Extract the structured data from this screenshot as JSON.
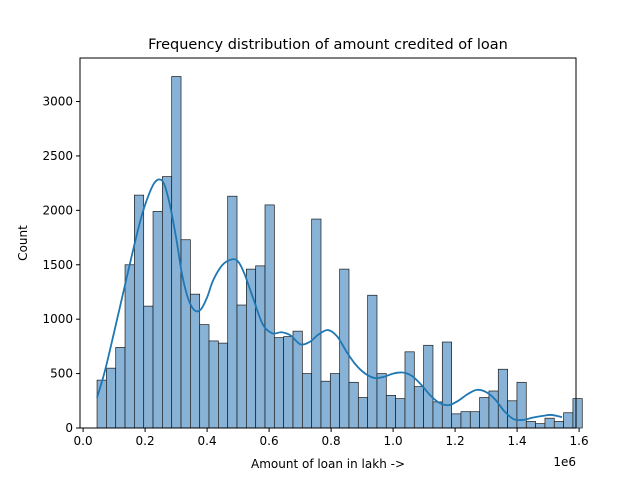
{
  "chart_data": {
    "type": "bar",
    "title": "Frequency distribution of amount credited of loan",
    "xlabel": "Amount of loan in lakh ->",
    "ylabel": "Count",
    "x_offset_label": "1e6",
    "xlim": [
      -0.01,
      1.59
    ],
    "ylim": [
      0,
      3400
    ],
    "xticks": [
      0.0,
      0.2,
      0.4,
      0.6,
      0.8,
      1.0,
      1.2,
      1.4,
      1.6
    ],
    "xtick_labels": [
      "0.0",
      "0.2",
      "0.4",
      "0.6",
      "0.8",
      "1.0",
      "1.2",
      "1.4",
      "1.6"
    ],
    "yticks": [
      0,
      500,
      1000,
      1500,
      2000,
      2500,
      3000
    ],
    "ytick_labels": [
      "0",
      "500",
      "1000",
      "1500",
      "2000",
      "2500",
      "3000"
    ],
    "bin_start": 0.045,
    "bin_width": 0.0301,
    "values": [
      440,
      550,
      740,
      1500,
      2140,
      1120,
      1990,
      2310,
      3230,
      1730,
      1230,
      950,
      800,
      780,
      2130,
      1130,
      1460,
      1490,
      2050,
      830,
      840,
      890,
      500,
      1920,
      430,
      500,
      1460,
      420,
      280,
      1220,
      500,
      300,
      270,
      700,
      380,
      760,
      240,
      790,
      130,
      150,
      150,
      280,
      340,
      540,
      250,
      420,
      60,
      40,
      90,
      60,
      140,
      270
    ],
    "kde": {
      "x": [
        0.045,
        0.07,
        0.1,
        0.13,
        0.16,
        0.19,
        0.22,
        0.24,
        0.26,
        0.28,
        0.3,
        0.32,
        0.34,
        0.36,
        0.38,
        0.4,
        0.42,
        0.45,
        0.48,
        0.5,
        0.52,
        0.55,
        0.58,
        0.61,
        0.64,
        0.67,
        0.7,
        0.73,
        0.76,
        0.79,
        0.82,
        0.85,
        0.88,
        0.91,
        0.94,
        0.97,
        1.0,
        1.03,
        1.06,
        1.09,
        1.12,
        1.15,
        1.18,
        1.21,
        1.24,
        1.27,
        1.3,
        1.33,
        1.36,
        1.39,
        1.42,
        1.45,
        1.48,
        1.51,
        1.545
      ],
      "y": [
        280,
        520,
        880,
        1250,
        1620,
        1960,
        2200,
        2280,
        2250,
        2050,
        1750,
        1400,
        1180,
        1080,
        1090,
        1200,
        1360,
        1500,
        1550,
        1530,
        1420,
        1180,
        950,
        870,
        880,
        850,
        770,
        790,
        860,
        900,
        840,
        700,
        580,
        500,
        460,
        470,
        500,
        510,
        480,
        400,
        300,
        230,
        210,
        250,
        310,
        350,
        330,
        260,
        150,
        80,
        75,
        95,
        110,
        120,
        100
      ]
    },
    "colors": {
      "bar_fill": "#88b3d7",
      "bar_edge": "#1a1a1a",
      "kde_line": "#1f77b4"
    },
    "grid": false,
    "legend": "none"
  }
}
